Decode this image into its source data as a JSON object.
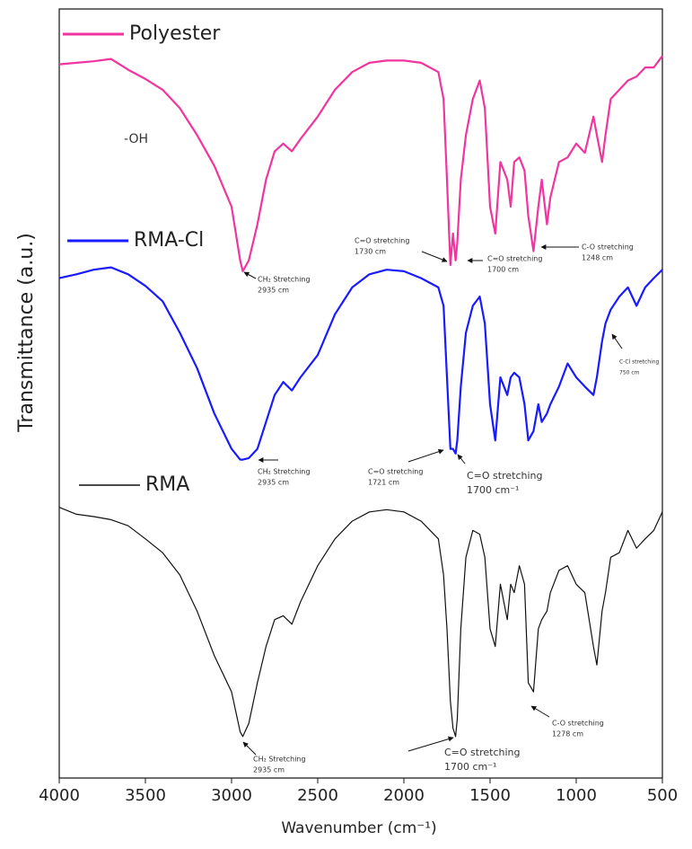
{
  "chart_data": {
    "type": "line",
    "x_label": "Wavenumber (cm⁻¹)",
    "y_label": "Transmittance (a.u.)",
    "xlim": [
      4000,
      500
    ],
    "xticks": [
      4000,
      3500,
      3000,
      2500,
      2000,
      1500,
      1000,
      500
    ],
    "ylim": [
      0,
      100
    ],
    "x": [
      4000,
      3900,
      3800,
      3700,
      3600,
      3500,
      3400,
      3300,
      3200,
      3100,
      3000,
      2950,
      2935,
      2900,
      2850,
      2800,
      2750,
      2700,
      2650,
      2600,
      2500,
      2400,
      2300,
      2200,
      2100,
      2000,
      1900,
      1800,
      1770,
      1750,
      1730,
      1715,
      1700,
      1690,
      1670,
      1640,
      1600,
      1560,
      1530,
      1500,
      1470,
      1440,
      1400,
      1380,
      1360,
      1330,
      1300,
      1278,
      1248,
      1220,
      1200,
      1170,
      1150,
      1100,
      1050,
      1000,
      950,
      900,
      880,
      850,
      830,
      800,
      750,
      700,
      650,
      600,
      550,
      500
    ],
    "series": [
      {
        "name": "Polyester",
        "color": "#f0359f",
        "values": [
          92.8,
          93.0,
          93.2,
          93.5,
          92.1,
          90.9,
          89.5,
          87.1,
          83.6,
          79.6,
          74.3,
          67.3,
          65.9,
          67.3,
          72.0,
          77.8,
          81.5,
          82.5,
          81.5,
          83.1,
          86.0,
          89.5,
          91.8,
          93.0,
          93.3,
          93.3,
          93.0,
          91.8,
          88.3,
          77.8,
          66.7,
          70.8,
          67.3,
          69.6,
          77.8,
          83.6,
          88.3,
          90.7,
          87.1,
          74.3,
          70.8,
          80.1,
          77.8,
          74.3,
          80.1,
          80.7,
          79.0,
          73.1,
          68.5,
          74.3,
          77.8,
          72.0,
          75.5,
          80.1,
          80.7,
          82.5,
          81.3,
          86.0,
          83.6,
          80.1,
          83.6,
          88.3,
          89.5,
          90.7,
          91.2,
          92.4,
          92.4,
          93.9
        ]
      },
      {
        "name": "RMA-Cl",
        "color": "#1a1aff",
        "values": [
          65.0,
          65.5,
          66.1,
          66.4,
          65.5,
          64.0,
          62.0,
          57.9,
          53.3,
          47.4,
          42.8,
          41.4,
          41.4,
          41.6,
          42.8,
          46.3,
          49.8,
          51.5,
          50.4,
          52.1,
          55.0,
          60.3,
          63.8,
          65.5,
          66.1,
          65.9,
          65.0,
          63.8,
          61.4,
          52.1,
          42.8,
          42.8,
          42.2,
          43.9,
          50.9,
          57.9,
          61.4,
          62.6,
          59.1,
          48.6,
          43.9,
          52.1,
          49.8,
          52.1,
          52.7,
          52.1,
          48.6,
          43.9,
          45.1,
          48.6,
          46.3,
          47.4,
          48.6,
          50.9,
          53.9,
          52.1,
          50.9,
          49.8,
          52.1,
          56.8,
          59.1,
          60.9,
          62.6,
          63.8,
          61.4,
          63.8,
          65.0,
          66.1
        ]
      },
      {
        "name": "RMA",
        "color": "#111111",
        "values": [
          35.2,
          34.3,
          34.0,
          33.6,
          32.8,
          31.1,
          29.3,
          26.4,
          21.7,
          15.9,
          11.2,
          6.0,
          5.4,
          7.1,
          12.4,
          17.1,
          20.6,
          21.1,
          20.0,
          22.9,
          27.6,
          31.1,
          33.4,
          34.6,
          34.9,
          34.6,
          33.4,
          31.1,
          26.4,
          19.4,
          10.0,
          6.5,
          5.4,
          7.7,
          19.4,
          28.7,
          32.2,
          31.7,
          28.7,
          19.4,
          17.1,
          25.2,
          20.6,
          25.2,
          24.1,
          27.6,
          25.2,
          12.4,
          11.2,
          19.4,
          20.6,
          21.7,
          24.1,
          27.0,
          27.6,
          25.2,
          24.1,
          17.1,
          14.7,
          21.7,
          24.1,
          28.7,
          29.3,
          32.2,
          29.9,
          31.1,
          32.2,
          34.6
        ]
      }
    ],
    "annotations": [
      [
        "-OH"
      ],
      [
        "CH₂ Stretching",
        "2935 cm"
      ],
      [
        "C=O stretching",
        "1730 cm"
      ],
      [
        "C=O stretching",
        "1700 cm"
      ],
      [
        "C-O stretching",
        "1248 cm"
      ],
      [
        "CH₂ Stretching",
        "2935 cm"
      ],
      [
        "C=O stretching",
        "1721 cm"
      ],
      [
        "C=O stretching",
        "1700 cm⁻¹"
      ],
      [
        "C-Cl stretching",
        "750 cm"
      ],
      [
        "CH₂ Stretching",
        "2935 cm"
      ],
      [
        "C=O stretching",
        "1700 cm⁻¹"
      ],
      [
        "C-O stretching",
        "1278 cm"
      ]
    ]
  }
}
